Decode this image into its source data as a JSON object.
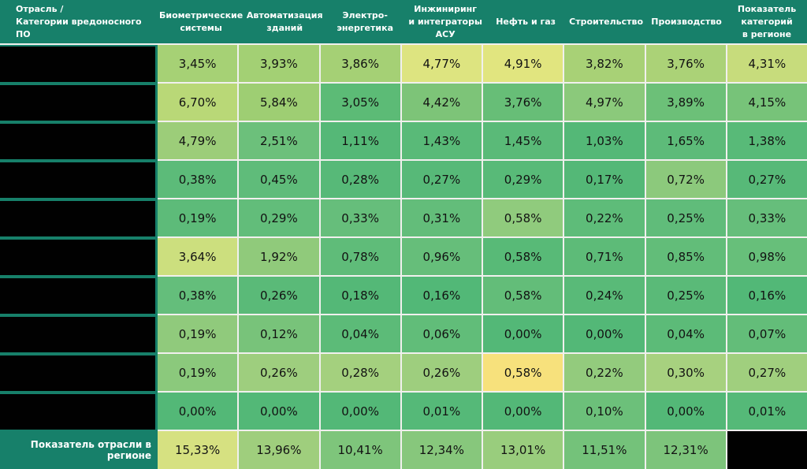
{
  "style": {
    "header_bg": "#17806A",
    "header_text": "#FFFFFF",
    "value_text": "#121212",
    "grid_line": "#F1F0EE",
    "redacted_fill": "#010101",
    "scale_low": "#53B877",
    "scale_high": "#F7E17C"
  },
  "chart_data": {
    "type": "heatmap",
    "units": "%",
    "decimal_separator": ",",
    "corner_label": "Отрасль /\nКатегории вредоносного ПО",
    "columns": [
      "Биометрические\nсистемы",
      "Автоматизация\nзданий",
      "Электро-\nэнергетика",
      "Инжиниринг\nи интеграторы\nАСУ",
      "Нефть и газ",
      "Строительство",
      "Производство",
      "Показатель\nкатегорий\nв регионе"
    ],
    "row_labels_redacted": true,
    "rows": [
      {
        "values": [
          3.45,
          3.93,
          3.86,
          4.77,
          4.91,
          3.82,
          3.76,
          4.31
        ],
        "colors": [
          "#A6D175",
          "#A3D074",
          "#A5D075",
          "#DDE480",
          "#E1E57F",
          "#A8D176",
          "#ABD277",
          "#C7DC7C"
        ]
      },
      {
        "values": [
          6.7,
          5.84,
          3.05,
          4.42,
          3.76,
          4.97,
          3.89,
          4.15
        ],
        "colors": [
          "#B9D877",
          "#9ECE73",
          "#5CBB76",
          "#7DC478",
          "#67BE77",
          "#8BC97B",
          "#6CC078",
          "#77C379"
        ]
      },
      {
        "values": [
          4.79,
          2.51,
          1.11,
          1.43,
          1.45,
          1.03,
          1.65,
          1.38
        ],
        "colors": [
          "#9CCD79",
          "#6CC07B",
          "#55B877",
          "#59BA78",
          "#5ABA78",
          "#54B877",
          "#5DBB79",
          "#58BA78"
        ]
      },
      {
        "values": [
          0.38,
          0.45,
          0.28,
          0.27,
          0.29,
          0.17,
          0.72,
          0.27
        ],
        "colors": [
          "#5CBB79",
          "#5FBC7A",
          "#57B978",
          "#57B978",
          "#58BA78",
          "#54B877",
          "#8CC97C",
          "#57B978"
        ]
      },
      {
        "values": [
          0.19,
          0.29,
          0.33,
          0.31,
          0.58,
          0.22,
          0.25,
          0.33
        ],
        "colors": [
          "#5DBB79",
          "#62BD7A",
          "#66BE7B",
          "#63BD7A",
          "#90CB7D",
          "#5EBC79",
          "#60BC7A",
          "#66BE7B"
        ]
      },
      {
        "values": [
          3.64,
          1.92,
          0.78,
          0.96,
          0.58,
          0.71,
          0.85,
          0.98
        ],
        "colors": [
          "#CCDF7E",
          "#90CA7B",
          "#5FBC79",
          "#66BE7A",
          "#58BA77",
          "#5DBB78",
          "#62BD79",
          "#67BF7A"
        ]
      },
      {
        "values": [
          0.38,
          0.26,
          0.18,
          0.16,
          0.58,
          0.24,
          0.25,
          0.16
        ],
        "colors": [
          "#64BE7B",
          "#5ABA78",
          "#54B877",
          "#52B877",
          "#63BD79",
          "#59BA78",
          "#5ABA78",
          "#52B877"
        ]
      },
      {
        "values": [
          0.19,
          0.12,
          0.04,
          0.06,
          0.0,
          0.0,
          0.04,
          0.07
        ],
        "colors": [
          "#90CA7C",
          "#78C37A",
          "#5CBB78",
          "#61BD79",
          "#53B877",
          "#53B877",
          "#5CBB78",
          "#63BD79"
        ]
      },
      {
        "values": [
          0.19,
          0.26,
          0.28,
          0.26,
          0.58,
          0.22,
          0.3,
          0.27
        ],
        "colors": [
          "#8BC97C",
          "#9ECE7E",
          "#A4D07E",
          "#9ECE7E",
          "#F7E17C",
          "#93CB7D",
          "#A7D17F",
          "#A0CF7E"
        ]
      },
      {
        "values": [
          0.0,
          0.0,
          0.0,
          0.01,
          0.0,
          0.1,
          0.0,
          0.01
        ],
        "colors": [
          "#53B877",
          "#53B877",
          "#53B877",
          "#55B978",
          "#53B877",
          "#6CC07A",
          "#53B877",
          "#55B978"
        ]
      }
    ],
    "footer": {
      "label": "Показатель отрасли в регионе",
      "values": [
        15.33,
        13.96,
        10.41,
        12.34,
        13.01,
        11.51,
        12.31
      ],
      "colors": [
        "#D6E181",
        "#9FCE7D",
        "#7EC57B",
        "#87C77C",
        "#99CD7D",
        "#74C27A",
        "#7DC47B"
      ],
      "last_cell_redacted": true
    }
  }
}
